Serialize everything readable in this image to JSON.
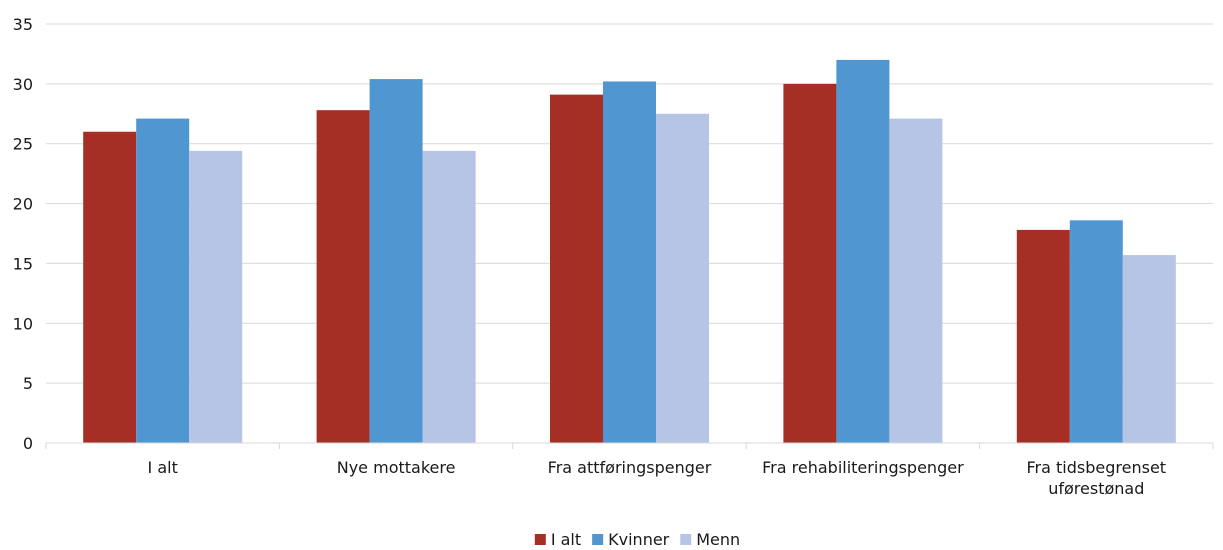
{
  "chart_data": {
    "type": "bar",
    "categories": [
      [
        "I alt"
      ],
      [
        "Nye mottakere"
      ],
      [
        "Fra attføringspenger"
      ],
      [
        "Fra rehabiliteringspenger"
      ],
      [
        "Fra tidsbegrenset",
        "uførestønad"
      ]
    ],
    "series": [
      {
        "name": "I alt",
        "color": "#a52f25",
        "values": [
          26.0,
          27.8,
          29.1,
          30.0,
          17.8
        ]
      },
      {
        "name": "Kvinner",
        "color": "#5096d0",
        "values": [
          27.1,
          30.4,
          30.2,
          32.0,
          18.6
        ]
      },
      {
        "name": "Menn",
        "color": "#b6c5e6",
        "values": [
          24.4,
          24.4,
          27.5,
          27.1,
          15.7
        ]
      }
    ],
    "ylim": [
      0,
      35
    ],
    "yticks": [
      0,
      5,
      10,
      15,
      20,
      25,
      30,
      35
    ],
    "grid": true,
    "legend_position": "bottom"
  }
}
